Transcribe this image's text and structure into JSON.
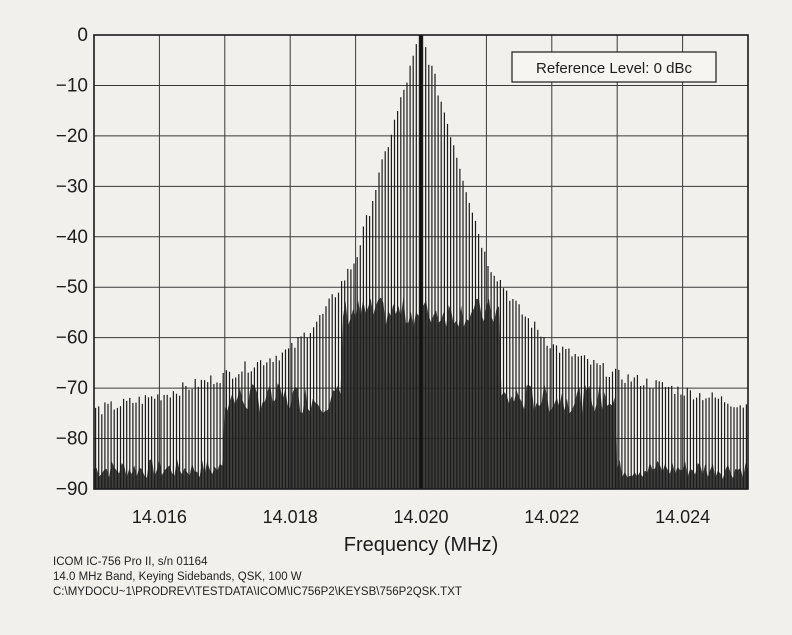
{
  "chart_data": {
    "type": "line",
    "title": "",
    "xlabel": "Frequency (MHz)",
    "ylabel": "",
    "xlim": [
      14.015,
      14.025
    ],
    "ylim": [
      -90,
      0
    ],
    "xticks": [
      14.016,
      14.018,
      14.02,
      14.022,
      14.024
    ],
    "xtick_labels": [
      "14.016",
      "14.018",
      "14.020",
      "14.022",
      "14.024"
    ],
    "yticks": [
      0,
      -10,
      -20,
      -30,
      -40,
      -50,
      -60,
      -70,
      -80,
      -90
    ],
    "ytick_labels": [
      "0",
      "−10",
      "−20",
      "−30",
      "−40",
      "−50",
      "−60",
      "−70",
      "−80",
      "−90"
    ],
    "grid": true,
    "annotation": "Reference Level: 0 dBc",
    "series": [
      {
        "name": "",
        "description_points": [
          {
            "x": 14.015,
            "y": -75
          },
          {
            "x": 14.016,
            "y": -72
          },
          {
            "x": 14.017,
            "y": -68
          },
          {
            "x": 14.018,
            "y": -63
          },
          {
            "x": 14.0185,
            "y": -56
          },
          {
            "x": 14.019,
            "y": -45
          },
          {
            "x": 14.0195,
            "y": -22
          },
          {
            "x": 14.02,
            "y": 0
          },
          {
            "x": 14.0205,
            "y": -22
          },
          {
            "x": 14.021,
            "y": -45
          },
          {
            "x": 14.0215,
            "y": -55
          },
          {
            "x": 14.022,
            "y": -62
          },
          {
            "x": 14.023,
            "y": -68
          },
          {
            "x": 14.024,
            "y": -71
          },
          {
            "x": 14.025,
            "y": -74
          }
        ]
      }
    ]
  },
  "footer": {
    "line1": "ICOM IC-756 Pro II, s/n 01164",
    "line2": "14.0 MHz Band, Keying Sidebands, QSK, 100 W",
    "line3": "C:\\MYDOCU~1\\PRODREV\\TESTDATA\\ICOM\\IC756P2\\KEYSB\\756P2QSK.TXT"
  }
}
